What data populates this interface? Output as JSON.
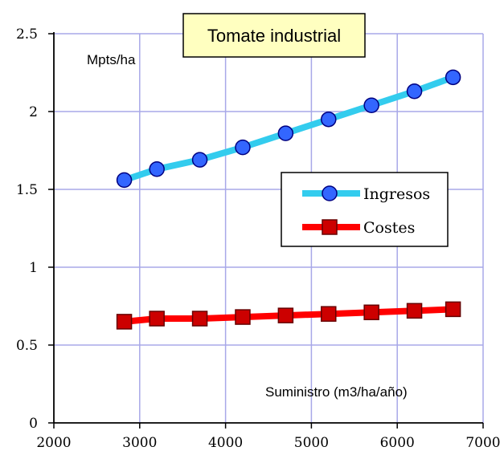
{
  "chart_data": {
    "type": "line",
    "title": "Tomate industrial",
    "ylabel": "Mpts/ha",
    "xlabel": "Suministro (m3/ha/año)",
    "xlim": [
      2000,
      7000
    ],
    "ylim": [
      0,
      2.5
    ],
    "x_ticks": [
      2000,
      3000,
      4000,
      5000,
      6000,
      7000
    ],
    "y_ticks": [
      0,
      0.5,
      1,
      1.5,
      2,
      2.5
    ],
    "y_tick_labels": [
      "0",
      "0.5",
      "1",
      "1.5",
      "2",
      "2.5"
    ],
    "grid": true,
    "legend_position": "center-right",
    "x": [
      2820,
      3200,
      3700,
      4200,
      4700,
      5200,
      5700,
      6200,
      6650
    ],
    "series": [
      {
        "name": "Ingresos",
        "color": "#33ccee",
        "marker": "circle",
        "marker_fill": "#3366ff",
        "values": [
          1.56,
          1.63,
          1.69,
          1.77,
          1.86,
          1.95,
          2.04,
          2.13,
          2.22
        ]
      },
      {
        "name": "Costes",
        "color": "#ff0000",
        "marker": "square",
        "marker_fill": "#cc0000",
        "values": [
          0.65,
          0.67,
          0.67,
          0.68,
          0.69,
          0.7,
          0.71,
          0.72,
          0.73
        ]
      }
    ]
  },
  "colors": {
    "grid": "#a8a8e8",
    "axis": "#000000",
    "title_box_fill": "#ffffc0",
    "marker_stroke": "#000080"
  }
}
